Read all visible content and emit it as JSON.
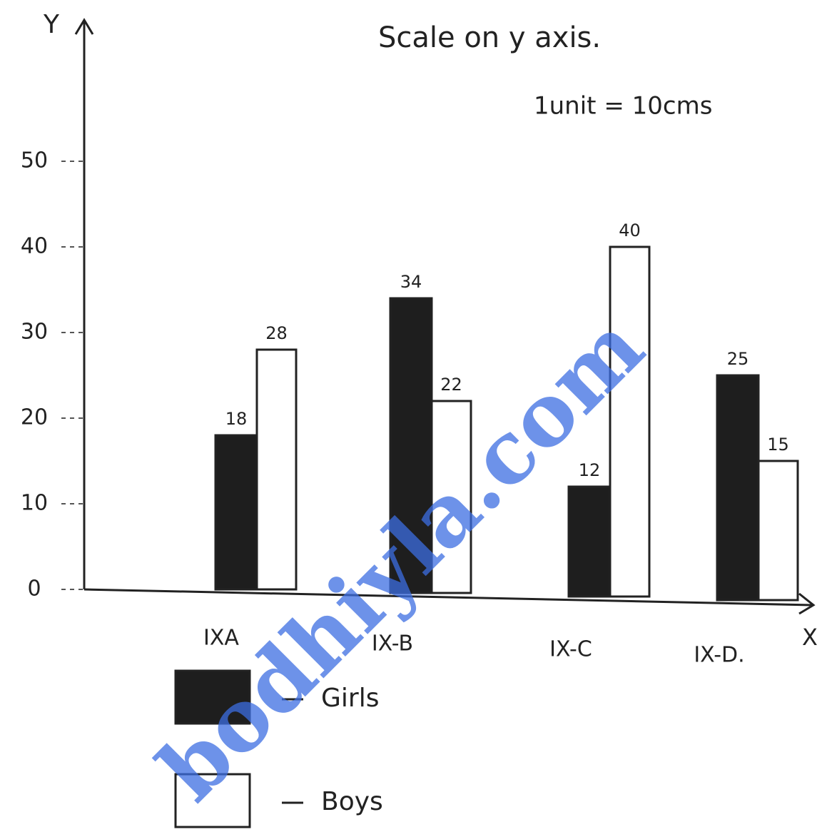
{
  "chart_data": {
    "type": "bar",
    "title": "Scale on y axis.",
    "subtitle": "1unit = 10cms",
    "x_label": "X",
    "y_label": "Y",
    "categories": [
      "IXA",
      "IX-B",
      "IX-C",
      "IX-D."
    ],
    "series": [
      {
        "name": "Girls",
        "color": "#1e1e1e",
        "values": [
          18,
          34,
          12,
          25
        ]
      },
      {
        "name": "Boys",
        "color": "#ffffff",
        "values": [
          28,
          22,
          40,
          15
        ]
      }
    ],
    "ylim": [
      0,
      65
    ],
    "yticks": [
      0,
      10,
      20,
      30,
      40,
      50
    ],
    "watermark": "bodhiyla.com"
  }
}
